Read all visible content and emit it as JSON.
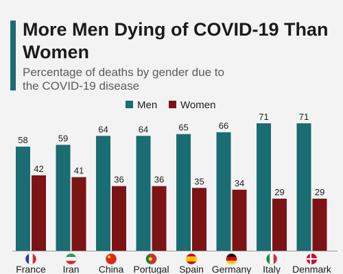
{
  "title": "More Men Dying of COVID-19 Than Women",
  "subtitle": "Percentage of deaths by gender due to the COVID-19 disease",
  "colors": {
    "men": "#1a6d72",
    "women": "#7c1416",
    "axis": "#9a9a9a",
    "label": "#1b1b1b",
    "accent": "#1a6d72"
  },
  "chart_data": {
    "type": "bar",
    "title": "More Men Dying of COVID-19 Than Women",
    "subtitle": "Percentage of deaths by gender due to the COVID-19 disease",
    "categories": [
      "France",
      "Iran",
      "China",
      "Portugal",
      "Spain",
      "Germany",
      "Italy",
      "Denmark"
    ],
    "flag_icons": [
      "france-flag-icon",
      "iran-flag-icon",
      "china-flag-icon",
      "portugal-flag-icon",
      "spain-flag-icon",
      "germany-flag-icon",
      "italy-flag-icon",
      "denmark-flag-icon"
    ],
    "series": [
      {
        "name": "Men",
        "color": "#1a6d72",
        "values": [
          58,
          59,
          64,
          64,
          65,
          66,
          71,
          71
        ]
      },
      {
        "name": "Women",
        "color": "#7c1416",
        "values": [
          42,
          41,
          36,
          36,
          35,
          34,
          29,
          29
        ]
      }
    ],
    "xlabel": "",
    "ylabel": "",
    "ylim": [
      0,
      71
    ],
    "grid": false,
    "legend": "top-right",
    "data_labels": true
  }
}
